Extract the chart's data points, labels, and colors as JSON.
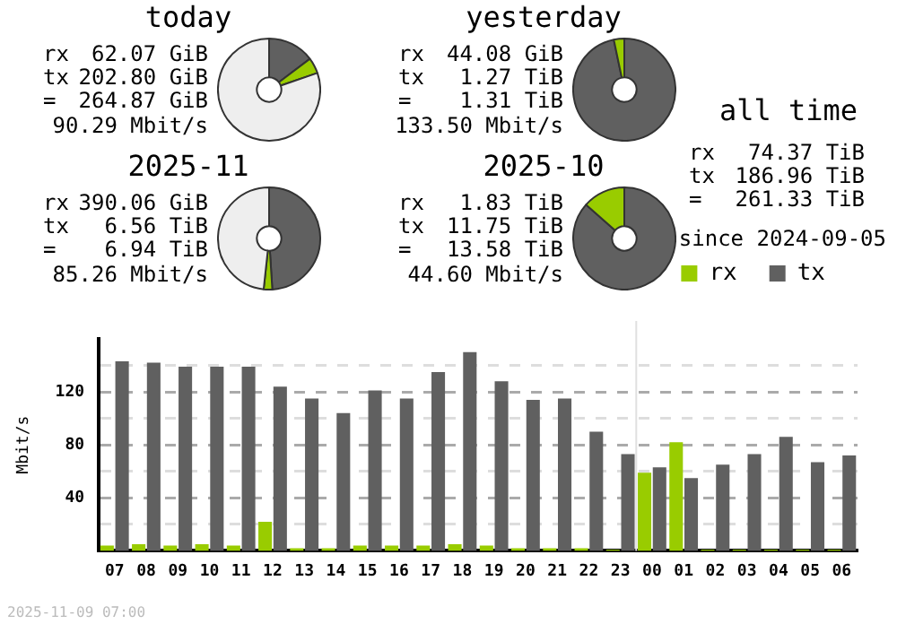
{
  "chart_data": [
    {
      "type": "donut",
      "title": "today",
      "categories": [
        null,
        null,
        null
      ],
      "values": [
        14.7,
        5.0,
        80.3
      ],
      "colors": [
        "#606060",
        "#99cc00",
        "#eeeeee"
      ],
      "annotations": [
        "rx 62.07 GiB",
        "tx 202.80 GiB",
        "= 264.87 GiB",
        "90.29 Mbit/s"
      ]
    },
    {
      "type": "donut",
      "title": "yesterday",
      "categories": [
        null,
        null
      ],
      "values": [
        96.7,
        3.3
      ],
      "colors": [
        "#606060",
        "#99cc00"
      ],
      "annotations": [
        "rx 44.08 GiB",
        "tx 1.27 TiB",
        "= 1.31 TiB",
        "133.50 Mbit/s"
      ]
    },
    {
      "type": "other",
      "title": "all time",
      "annotations": [
        "rx 74.37 TiB",
        "tx 186.96 TiB",
        "= 261.33 TiB",
        "since 2024-09-05"
      ]
    },
    {
      "type": "donut",
      "title": "2025-11",
      "categories": [
        null,
        null,
        null
      ],
      "values": [
        49.0,
        2.7,
        48.3
      ],
      "colors": [
        "#606060",
        "#99cc00",
        "#eeeeee"
      ],
      "annotations": [
        "rx 390.06 GiB",
        "tx 6.56 TiB",
        "= 6.94 TiB",
        "85.26 Mbit/s"
      ]
    },
    {
      "type": "donut",
      "title": "2025-10",
      "categories": [
        null,
        null
      ],
      "values": [
        86.5,
        13.5
      ],
      "colors": [
        "#606060",
        "#99cc00"
      ],
      "annotations": [
        "rx 1.83 TiB",
        "tx 11.75 TiB",
        "= 13.58 TiB",
        "44.60 Mbit/s"
      ]
    },
    {
      "type": "bar",
      "categories": [
        "07",
        "08",
        "09",
        "10",
        "11",
        "12",
        "13",
        "14",
        "15",
        "16",
        "17",
        "18",
        "19",
        "20",
        "21",
        "22",
        "23",
        "00",
        "01",
        "02",
        "03",
        "04",
        "05",
        "06"
      ],
      "series": [
        {
          "name": "rx",
          "color": "#99cc00",
          "values": [
            4,
            5,
            4,
            5,
            4,
            22,
            2,
            2,
            4,
            4,
            4,
            5,
            4,
            2,
            2,
            2,
            1,
            59,
            82,
            1,
            1,
            1,
            1,
            1
          ]
        },
        {
          "name": "tx",
          "color": "#606060",
          "values": [
            143,
            142,
            139,
            139,
            139,
            124,
            115,
            104,
            121,
            115,
            135,
            150,
            128,
            114,
            115,
            90,
            73,
            63,
            55,
            65,
            73,
            86,
            67,
            72
          ]
        }
      ],
      "ylabel": "Mbit/s",
      "ylim": [
        0,
        160
      ],
      "yticks": [
        {
          "value": 20,
          "label": null
        },
        40,
        {
          "value": 60,
          "label": null
        },
        80,
        {
          "value": 100,
          "label": null
        },
        120,
        {
          "value": 140,
          "label": null
        }
      ],
      "grid": "y",
      "legend": "top right",
      "ref_lines": [
        {
          "axis": "x",
          "value": "00",
          "color": "#e0e0e0"
        }
      ],
      "annotations": [
        "2025-11-09 07:00"
      ]
    }
  ]
}
